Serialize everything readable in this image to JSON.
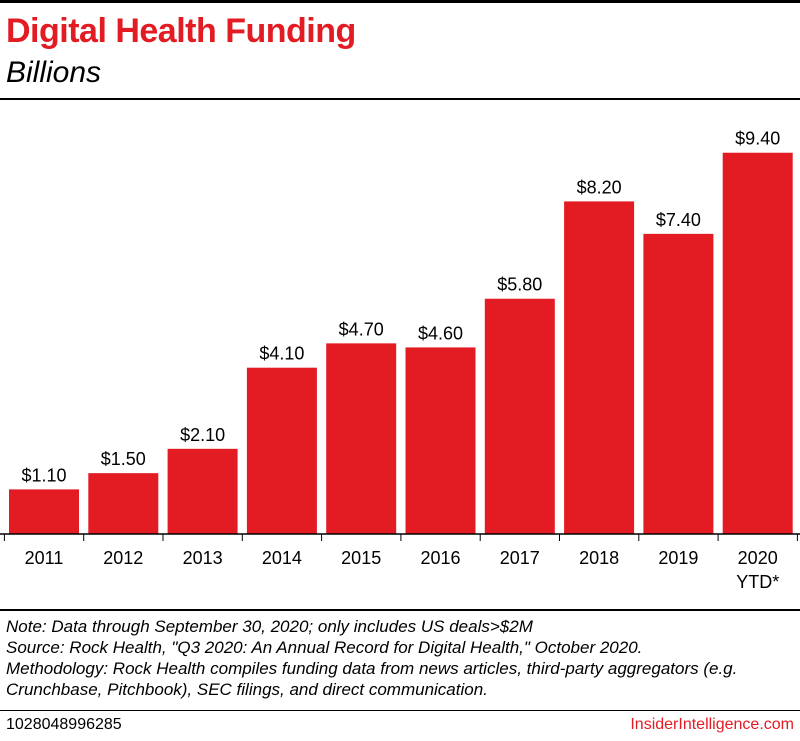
{
  "header": {
    "title": "Digital Health Funding",
    "subtitle": "Billions"
  },
  "chart_data": {
    "type": "bar",
    "title": "Digital Health Funding",
    "subtitle": "Billions",
    "categories": [
      "2011",
      "2012",
      "2013",
      "2014",
      "2015",
      "2016",
      "2017",
      "2018",
      "2019",
      "2020"
    ],
    "category_sublabels": [
      "",
      "",
      "",
      "",
      "",
      "",
      "",
      "",
      "",
      "YTD*"
    ],
    "values": [
      1.1,
      1.5,
      2.1,
      4.1,
      4.7,
      4.6,
      5.8,
      8.2,
      7.4,
      9.4
    ],
    "value_labels": [
      "$1.10",
      "$1.50",
      "$2.10",
      "$4.10",
      "$4.70",
      "$4.60",
      "$5.80",
      "$8.20",
      "$7.40",
      "$9.40"
    ],
    "xlabel": "",
    "ylabel": "Billions",
    "ylim": [
      0,
      10.7
    ],
    "grid": false,
    "bar_color": "#e31b23"
  },
  "notes": {
    "note": "Note: Data through September 30, 2020; only includes US deals>$2M",
    "source": "Source: Rock Health, \"Q3 2020: An Annual Record for Digital Health,\" October 2020.",
    "methodology_1": "Methodology: Rock Health compiles funding data from news articles, third-party aggregators (e.g.",
    "methodology_2": "Crunchbase, Pitchbook), SEC filings, and direct communication."
  },
  "footer": {
    "chart_id": "1028048996285",
    "brand": "InsiderIntelligence.com"
  },
  "colors": {
    "accent": "#e31b23",
    "text": "#000000"
  }
}
